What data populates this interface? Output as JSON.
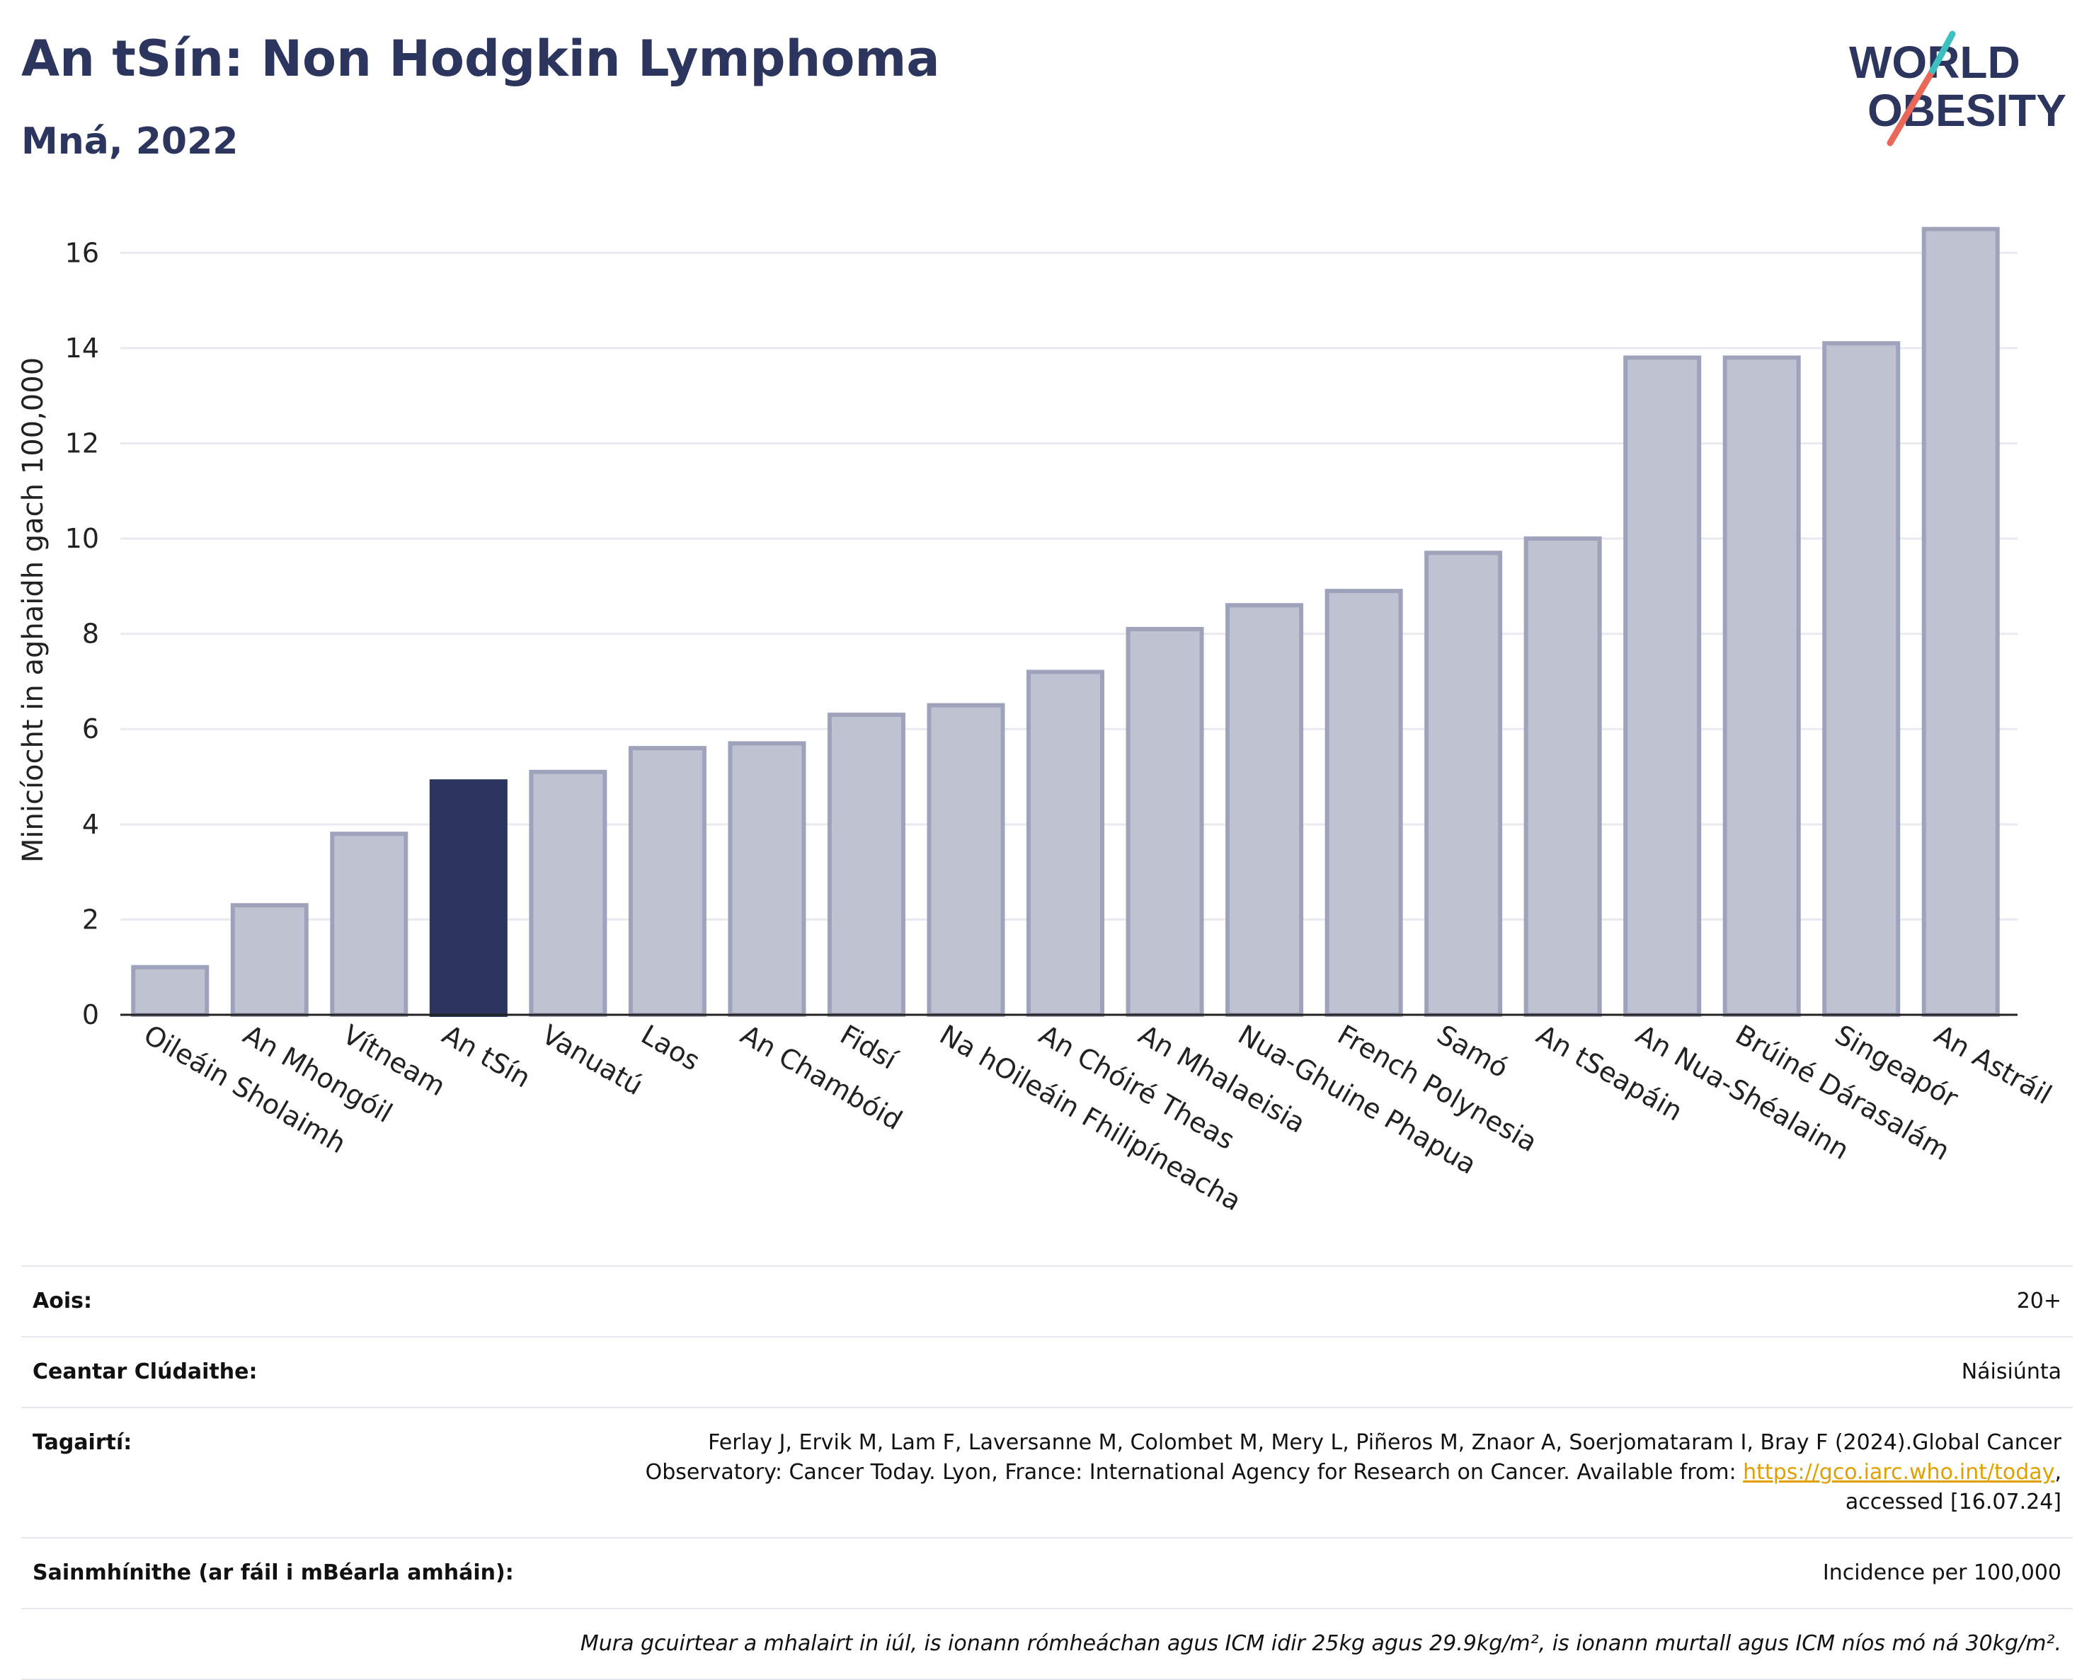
{
  "header": {
    "title": "An tSín: Non Hodgkin Lymphoma",
    "subtitle": "Mná, 2022",
    "logo_line1": "WORLD",
    "logo_line2": "OBESITY"
  },
  "colors": {
    "highlight": "#2b355e",
    "bar_fill": "#bfc3d1",
    "bar_stroke": "#9ea3bb",
    "grid": "#e8eaf0",
    "logo_teal": "#3fc0c0",
    "logo_coral": "#e8685a"
  },
  "chart_data": {
    "type": "bar",
    "title": "",
    "xlabel": "",
    "ylabel": "Minicíocht in aghaidh gach 100,000",
    "ylim": [
      0,
      17
    ],
    "yticks": [
      0,
      2,
      4,
      6,
      8,
      10,
      12,
      14,
      16
    ],
    "grid": true,
    "highlight": "An tSín",
    "categories": [
      "Oileáin Sholaimh",
      "An Mhongóil",
      "Vítneam",
      "An tSín",
      "Vanuatú",
      "Laos",
      "An Chambóid",
      "Fidsí",
      "Na hOileáin Fhilipíneacha",
      "An Chóiré Theas",
      "An Mhalaeisia",
      "Nua-Ghuine Phapua",
      "French Polynesia",
      "Samó",
      "An tSeapáin",
      "An Nua-Shéalainn",
      "Brúiné Dárasalám",
      "Singeapór",
      "An Astráil"
    ],
    "values": [
      1.0,
      2.3,
      3.8,
      4.9,
      5.1,
      5.6,
      5.7,
      6.3,
      6.5,
      7.2,
      8.1,
      8.6,
      8.9,
      9.7,
      10.0,
      13.8,
      13.8,
      14.1,
      16.5
    ]
  },
  "info": {
    "age_label": "Aois:",
    "age_value": "20+",
    "area_label": "Ceantar Clúdaithe:",
    "area_value": "Náisiúnta",
    "ref_label": "Tagairtí:",
    "ref_line1": "Ferlay J, Ervik M, Lam F, Laversanne M, Colombet M, Mery L, Piñeros M, Znaor A, Soerjomataram I, Bray F (2024).Global Cancer",
    "ref_line2": "Observatory: Cancer Today. Lyon, France: International Agency for Research on Cancer. Available from: ",
    "ref_link": "https://gco.iarc.who.int/today",
    "ref_line2_end": ",",
    "ref_line3": "accessed [16.07.24]",
    "def_label": "Sainmhínithe (ar fáil i mBéarla amháin):",
    "def_value": "Incidence per 100,000",
    "note": "Mura gcuirtear a mhalairt in iúl, is ionann rómheáchan agus ICM idir 25kg agus 29.9kg/m², is ionann murtall agus ICM níos mó ná 30kg/m²."
  }
}
